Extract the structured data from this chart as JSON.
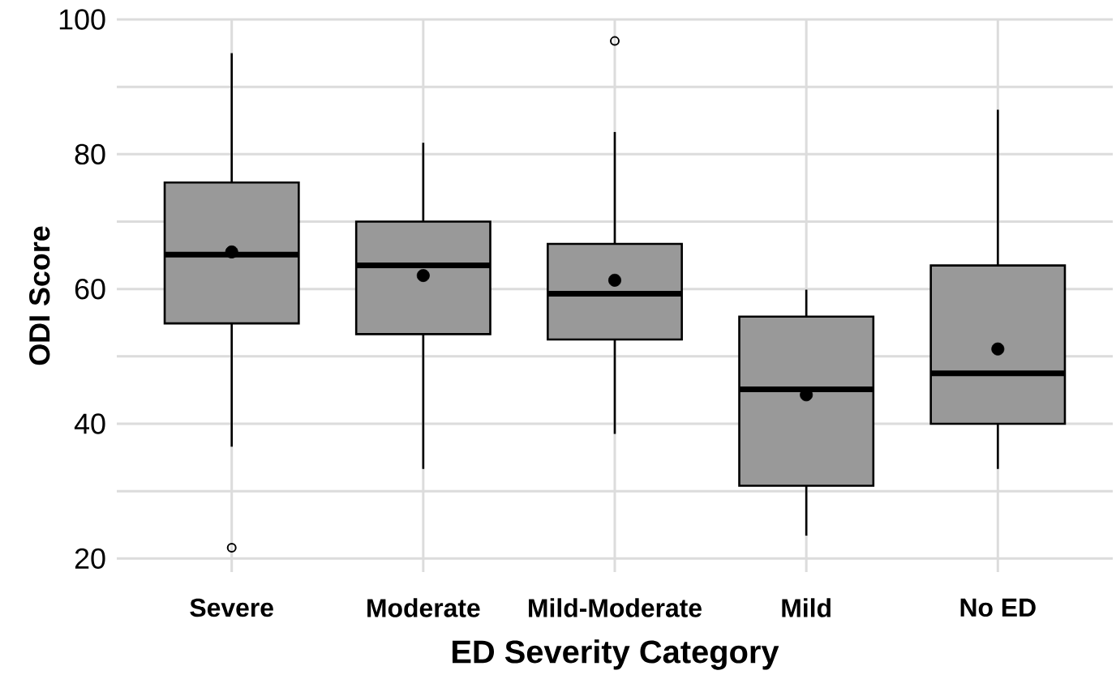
{
  "chart_data": {
    "type": "box",
    "xlabel": "ED Severity Category",
    "ylabel": "ODI Score",
    "categories": [
      "Severe",
      "Moderate",
      "Mild-Moderate",
      "Mild",
      "No ED"
    ],
    "color": "#999999",
    "boxes": [
      {
        "low": 36.6,
        "q1": 54.9,
        "median": 65.1,
        "q3": 75.8,
        "high": 95.0,
        "mean": 65.5,
        "outliers": [
          21.6
        ]
      },
      {
        "low": 33.3,
        "q1": 53.3,
        "median": 63.5,
        "q3": 70.0,
        "high": 81.7,
        "mean": 62.0
      },
      {
        "low": 38.5,
        "q1": 52.5,
        "median": 59.3,
        "q3": 66.7,
        "high": 83.3,
        "mean": 61.3,
        "outliers": [
          96.8
        ]
      },
      {
        "low": 23.4,
        "q1": 30.8,
        "median": 45.1,
        "q3": 55.9,
        "high": 59.9,
        "mean": 44.3
      },
      {
        "low": 33.3,
        "q1": 40.0,
        "median": 47.5,
        "q3": 63.5,
        "high": 86.6,
        "mean": 51.1
      }
    ],
    "ylim": [
      18,
      100
    ],
    "yticks": [
      20,
      {
        "value": 30,
        "label": null
      },
      40,
      {
        "value": 50,
        "label": null
      },
      60,
      {
        "value": 70,
        "label": null
      },
      80,
      {
        "value": 90,
        "label": null
      },
      100
    ],
    "grid": true
  }
}
